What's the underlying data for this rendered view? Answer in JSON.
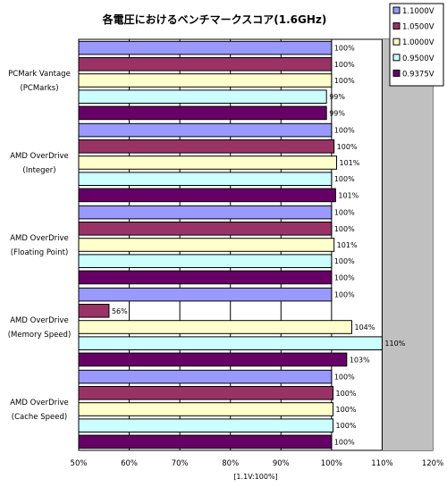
{
  "chart_data": {
    "type": "bar",
    "orientation": "horizontal",
    "title": "各電圧におけるベンチマークスコア(1.6GHz)",
    "xlabel": "[1.1V:100%]",
    "xlim": [
      50,
      120
    ],
    "xticks": [
      50,
      60,
      70,
      80,
      90,
      100,
      110,
      120
    ],
    "xtick_labels": [
      "50%",
      "60%",
      "70%",
      "80%",
      "90%",
      "100%",
      "110%",
      "120%"
    ],
    "grid": true,
    "legend_position": "top-right",
    "categories": [
      [
        "PCMark Vantage",
        "(PCMarks)"
      ],
      [
        "AMD OverDrive",
        "(Integer)"
      ],
      [
        "AMD OverDrive",
        "(Floating Point)"
      ],
      [
        "AMD OverDrive",
        "(Memory Speed)"
      ],
      [
        "AMD OverDrive",
        "(Cache Speed)"
      ]
    ],
    "series": [
      {
        "name": "1.1000V",
        "color": "#9999ff",
        "values": [
          100,
          100,
          100,
          100,
          100
        ],
        "labels": [
          "100%",
          "100%",
          "100%",
          "100%",
          "100%"
        ]
      },
      {
        "name": "1.0500V",
        "color": "#993366",
        "values": [
          100,
          100.5,
          100,
          56,
          100.3
        ],
        "labels": [
          "100%",
          "100%",
          "100%",
          "56%",
          "100%"
        ]
      },
      {
        "name": "1.0000V",
        "color": "#ffffcc",
        "values": [
          100,
          101,
          100.5,
          104,
          100.3
        ],
        "labels": [
          "100%",
          "101%",
          "101%",
          "104%",
          "100%"
        ]
      },
      {
        "name": "0.9500V",
        "color": "#ccffff",
        "values": [
          99,
          100,
          100,
          110,
          100.3
        ],
        "labels": [
          "99%",
          "100%",
          "100%",
          "110%",
          "100%"
        ]
      },
      {
        "name": "0.9375V",
        "color": "#660066",
        "values": [
          99,
          100.8,
          100,
          103,
          100
        ],
        "labels": [
          "99%",
          "101%",
          "100%",
          "103%",
          "100%"
        ]
      }
    ]
  }
}
